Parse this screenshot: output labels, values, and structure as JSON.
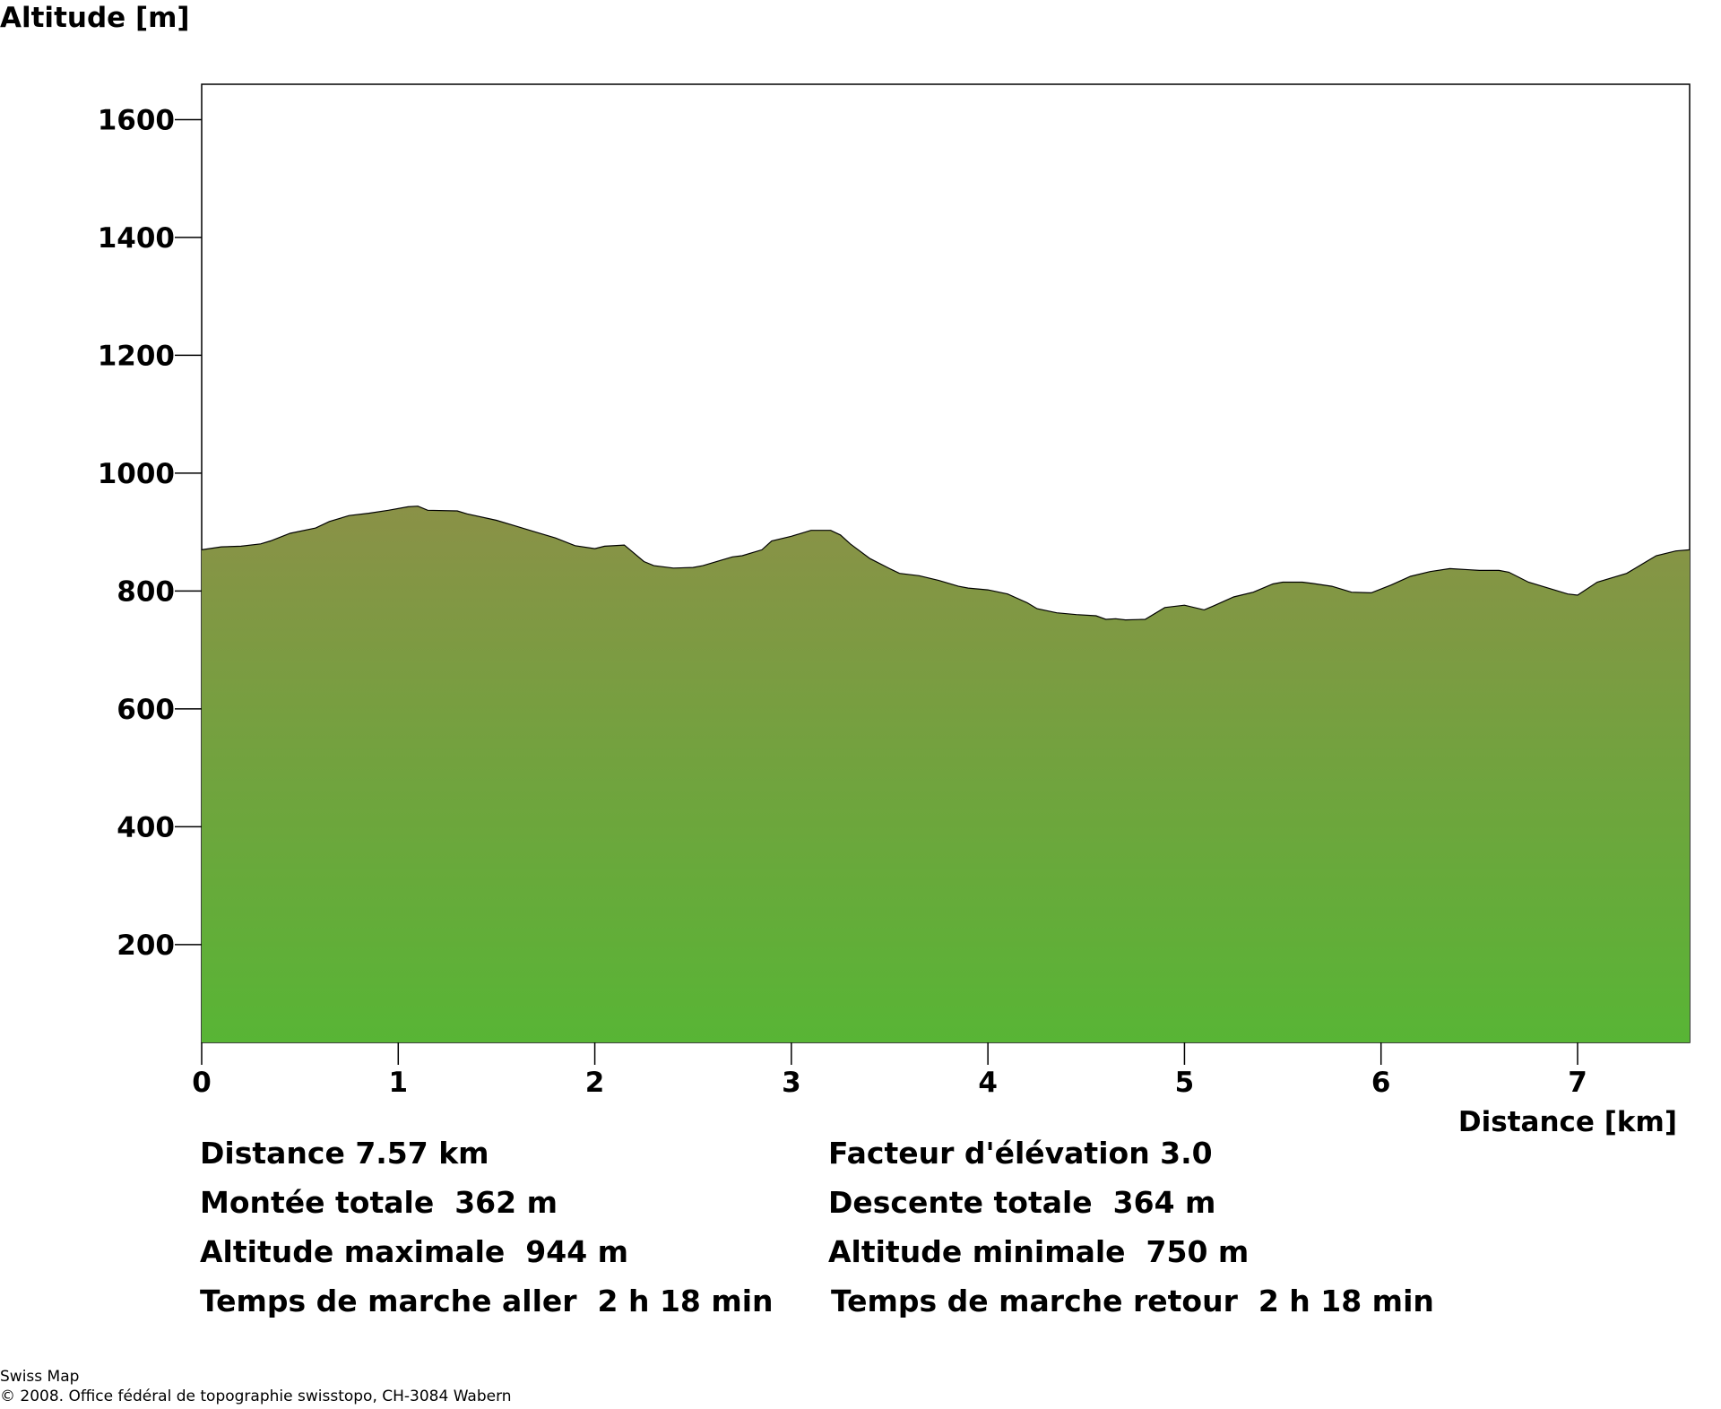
{
  "chart_data": {
    "type": "area",
    "ylabel": "Altitude [m]",
    "xlabel": "Distance [km]",
    "xlim": [
      0,
      7.57
    ],
    "ylim": [
      34,
      1660
    ],
    "x_ticks": [
      0,
      1,
      2,
      3,
      4,
      5,
      6,
      7
    ],
    "y_ticks": [
      200,
      400,
      600,
      800,
      1000,
      1200,
      1400,
      1600
    ],
    "grid": false,
    "fill_colors": {
      "top": "#8a9147",
      "bottom": "#58b535"
    },
    "outline_color": "#000000",
    "series": [
      {
        "x": [
          0,
          0.1,
          0.2,
          0.3,
          0.35,
          0.45,
          0.58,
          0.65,
          0.75,
          0.85,
          0.95,
          1.05,
          1.1,
          1.15,
          1.3,
          1.35,
          1.5,
          1.6,
          1.7,
          1.8,
          1.9,
          2.0,
          2.05,
          2.15,
          2.25,
          2.3,
          2.4,
          2.5,
          2.55,
          2.65,
          2.7,
          2.75,
          2.85,
          2.9,
          3.0,
          3.1,
          3.2,
          3.25,
          3.3,
          3.4,
          3.5,
          3.55,
          3.65,
          3.75,
          3.85,
          3.9,
          4.0,
          4.1,
          4.2,
          4.25,
          4.35,
          4.45,
          4.55,
          4.6,
          4.65,
          4.7,
          4.8,
          4.9,
          5.0,
          5.1,
          5.15,
          5.25,
          5.35,
          5.45,
          5.5,
          5.6,
          5.65,
          5.75,
          5.85,
          5.95,
          6.05,
          6.15,
          6.25,
          6.35,
          6.45,
          6.5,
          6.6,
          6.65,
          6.75,
          6.85,
          6.95,
          7.0,
          7.1,
          7.25,
          7.35,
          7.4,
          7.5,
          7.57
        ],
        "values": [
          870,
          875,
          876,
          880,
          885,
          898,
          907,
          918,
          928,
          932,
          937,
          943,
          944,
          937,
          936,
          931,
          920,
          910,
          900,
          890,
          877,
          872,
          876,
          878,
          850,
          843,
          839,
          840,
          843,
          853,
          858,
          860,
          870,
          885,
          893,
          903,
          903,
          895,
          880,
          855,
          838,
          830,
          826,
          818,
          808,
          805,
          802,
          795,
          780,
          770,
          763,
          760,
          758,
          752,
          753,
          751,
          752,
          772,
          776,
          768,
          775,
          790,
          798,
          812,
          815,
          815,
          813,
          808,
          798,
          797,
          810,
          825,
          833,
          838,
          836,
          835,
          835,
          832,
          815,
          805,
          795,
          793,
          815,
          830,
          850,
          860,
          868,
          870
        ]
      }
    ]
  },
  "stats": {
    "distance": "Distance 7.57 km",
    "elevation_factor": "Facteur d'élévation 3.0",
    "total_ascent": "Montée totale  362 m",
    "total_descent": "Descente totale  364 m",
    "max_altitude": "Altitude maximale  944 m",
    "min_altitude": "Altitude minimale  750 m",
    "walk_time_out": "Temps de marche aller  2 h 18 min",
    "walk_time_back": "Temps de marche retour  2 h 18 min"
  },
  "footer": {
    "line1": "Swiss Map",
    "line2": "© 2008. Office fédéral de topographie swisstopo, CH-3084 Wabern"
  }
}
